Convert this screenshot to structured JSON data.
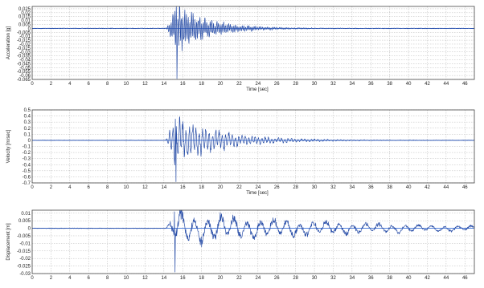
{
  "chart_data": [
    {
      "type": "line",
      "title": "",
      "xlabel": "Time [sec]",
      "ylabel": "Acceleration [g]",
      "xlim": [
        0,
        47
      ],
      "ylim": [
        -0.065,
        0.028
      ],
      "grid": true,
      "x_ticks": [
        0,
        2,
        4,
        6,
        8,
        10,
        12,
        14,
        16,
        18,
        20,
        22,
        24,
        26,
        28,
        30,
        32,
        34,
        36,
        38,
        40,
        42,
        44,
        46
      ],
      "y_ticks": [
        0.025,
        0.02,
        0.015,
        0.01,
        0.005,
        0,
        -0.005,
        -0.01,
        -0.015,
        -0.02,
        -0.025,
        -0.03,
        -0.035,
        -0.04,
        -0.045,
        -0.05,
        -0.055,
        -0.06,
        -0.065
      ],
      "series": [
        {
          "values": [],
          "profile": {
            "onset": 14.2,
            "peak_time": 15.4,
            "peak_value": -0.064,
            "max_value": 0.028,
            "decay": 0.28,
            "noise": 0.0004,
            "dominant_period": 0.18
          }
        }
      ]
    },
    {
      "type": "line",
      "title": "",
      "xlabel": "Time [sec]",
      "ylabel": "Velocity [m/sec]",
      "xlim": [
        0,
        47
      ],
      "ylim": [
        -0.7,
        0.5
      ],
      "grid": true,
      "x_ticks": [
        0,
        2,
        4,
        6,
        8,
        10,
        12,
        14,
        16,
        18,
        20,
        22,
        24,
        26,
        28,
        30,
        32,
        34,
        36,
        38,
        40,
        42,
        44,
        46
      ],
      "y_ticks": [
        0.5,
        0.4,
        0.3,
        0.2,
        0.1,
        0,
        -0.1,
        -0.2,
        -0.3,
        -0.4,
        -0.5,
        -0.6,
        -0.7
      ],
      "series": [
        {
          "values": [],
          "profile": {
            "onset": 14.2,
            "peak_time": 15.3,
            "peak_value": -0.68,
            "max_value": 0.35,
            "decay": 0.2,
            "noise": 0.004,
            "dominant_period": 0.35
          }
        }
      ]
    },
    {
      "type": "line",
      "title": "",
      "xlabel": "",
      "ylabel": "Displacement [m]",
      "xlim": [
        0,
        47
      ],
      "ylim": [
        -0.03,
        0.012
      ],
      "grid": true,
      "x_ticks": [
        0,
        2,
        4,
        6,
        8,
        10,
        12,
        14,
        16,
        18,
        20,
        22,
        24,
        26,
        28,
        30,
        32,
        34,
        36,
        38,
        40,
        42,
        44,
        46
      ],
      "y_ticks": [
        0.01,
        0.005,
        0,
        -0.005,
        -0.01,
        -0.015,
        -0.02,
        -0.025,
        -0.03
      ],
      "series": [
        {
          "values": [],
          "profile": {
            "onset": 14.2,
            "peak_time": 15.2,
            "peak_value": -0.029,
            "max_value": 0.011,
            "decay": 0.06,
            "noise": 0.0002,
            "dominant_period": 1.4
          }
        }
      ]
    }
  ]
}
